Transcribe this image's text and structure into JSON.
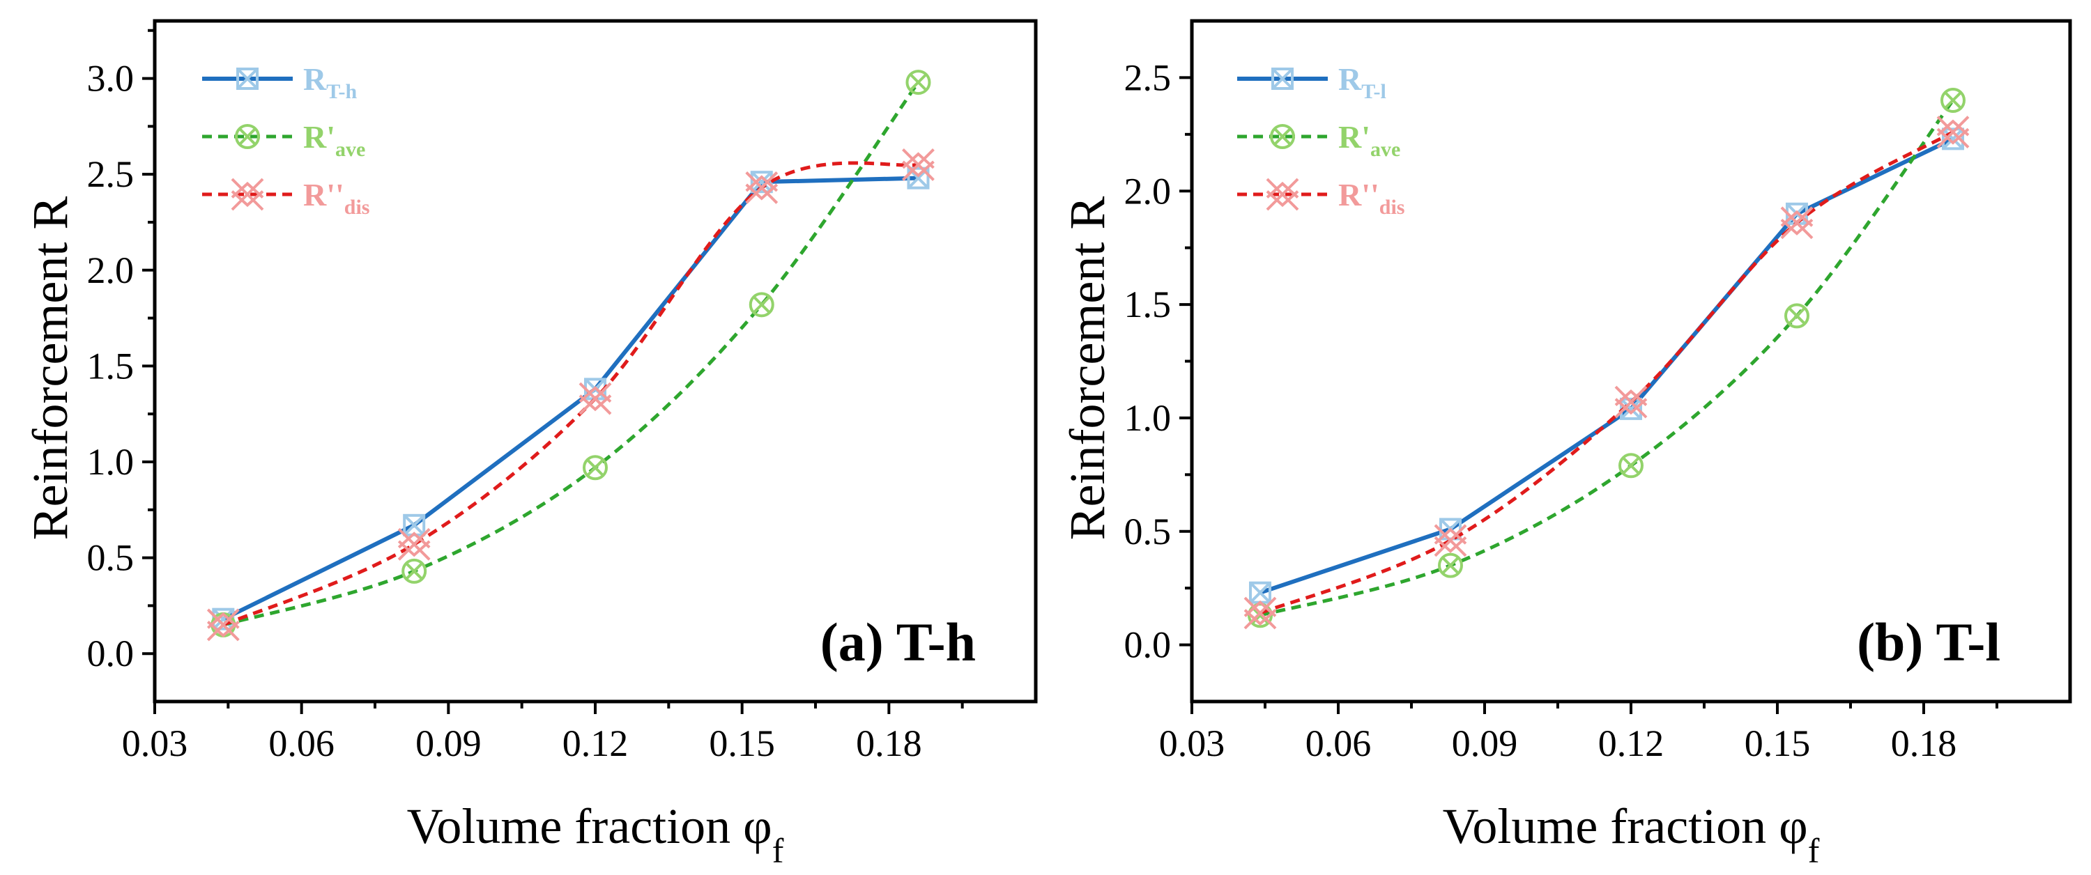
{
  "chart_data": [
    {
      "type": "line",
      "panel_label": "(a) T-h",
      "xlabel": "Volume fraction φ",
      "xlabel_sub": "f",
      "ylabel": "Reinforcement R",
      "xlim": [
        0.03,
        0.21
      ],
      "ylim": [
        -0.25,
        3.3
      ],
      "xticks": [
        0.03,
        0.06,
        0.09,
        0.12,
        0.15,
        0.18
      ],
      "xtick_labels": [
        "0.03",
        "0.06",
        "0.09",
        "0.12",
        "0.15",
        "0.18"
      ],
      "yticks": [
        0.0,
        0.5,
        1.0,
        1.5,
        2.0,
        2.5,
        3.0
      ],
      "ytick_labels": [
        "0.0",
        "0.5",
        "1.0",
        "1.5",
        "2.0",
        "2.5",
        "3.0"
      ],
      "x": [
        0.044,
        0.083,
        0.12,
        0.154,
        0.186
      ],
      "series": [
        {
          "name": "R",
          "sub": "T-h",
          "values": [
            0.18,
            0.67,
            1.38,
            2.46,
            2.48
          ],
          "color": "#1f6fbf",
          "marker_color": "#9ec9e8",
          "marker": "square-x",
          "dash": "solid"
        },
        {
          "name": "R'",
          "sub": "ave",
          "values": [
            0.15,
            0.43,
            0.97,
            1.82,
            2.98
          ],
          "color": "#2ea62e",
          "marker_color": "#93d36b",
          "marker": "circle-x",
          "dash": "dashed"
        },
        {
          "name": "R''",
          "sub": "dis",
          "values": [
            0.15,
            0.57,
            1.33,
            2.43,
            2.55
          ],
          "color": "#e01b1b",
          "marker_color": "#f29a9a",
          "marker": "star-x",
          "dash": "dashed"
        }
      ]
    },
    {
      "type": "line",
      "panel_label": "(b) T-l",
      "xlabel": "Volume fraction φ",
      "xlabel_sub": "f",
      "ylabel": "Reinforcement R",
      "xlim": [
        0.03,
        0.21
      ],
      "ylim": [
        -0.25,
        2.75
      ],
      "xticks": [
        0.03,
        0.06,
        0.09,
        0.12,
        0.15,
        0.18
      ],
      "xtick_labels": [
        "0.03",
        "0.06",
        "0.09",
        "0.12",
        "0.15",
        "0.18"
      ],
      "yticks": [
        0.0,
        0.5,
        1.0,
        1.5,
        2.0,
        2.5
      ],
      "ytick_labels": [
        "0.0",
        "0.5",
        "1.0",
        "1.5",
        "2.0",
        "2.5"
      ],
      "x": [
        0.044,
        0.083,
        0.12,
        0.154,
        0.186
      ],
      "series": [
        {
          "name": "R",
          "sub": "T-l",
          "values": [
            0.23,
            0.51,
            1.04,
            1.9,
            2.23
          ],
          "color": "#1f6fbf",
          "marker_color": "#9ec9e8",
          "marker": "square-x",
          "dash": "solid"
        },
        {
          "name": "R'",
          "sub": "ave",
          "values": [
            0.13,
            0.35,
            0.79,
            1.45,
            2.4
          ],
          "color": "#2ea62e",
          "marker_color": "#93d36b",
          "marker": "circle-x",
          "dash": "dashed"
        },
        {
          "name": "R''",
          "sub": "dis",
          "values": [
            0.14,
            0.46,
            1.07,
            1.86,
            2.26
          ],
          "color": "#e01b1b",
          "marker_color": "#f29a9a",
          "marker": "star-x",
          "dash": "dashed"
        }
      ]
    }
  ]
}
